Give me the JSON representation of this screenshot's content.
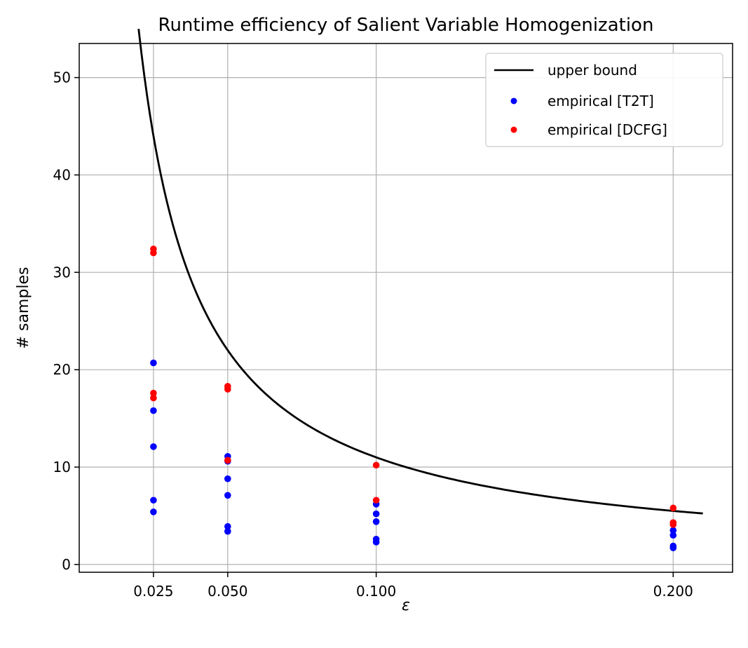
{
  "chart_data": {
    "type": "scatter",
    "title": "Runtime efficiency of Salient Variable Homogenization",
    "xlabel": "ε",
    "ylabel": "# samples",
    "xlim": [
      0.0,
      0.22
    ],
    "ylim": [
      -0.8,
      53.5
    ],
    "x_ticks": [
      0.025,
      0.05,
      0.1,
      0.2
    ],
    "x_tick_labels": [
      "0.025",
      "0.050",
      "0.100",
      "0.200"
    ],
    "y_ticks": [
      0,
      10,
      20,
      30,
      40,
      50
    ],
    "y_tick_labels": [
      "0",
      "10",
      "20",
      "30",
      "40",
      "50"
    ],
    "grid": true,
    "legend_position": "upper right",
    "line": {
      "name": "upper bound",
      "color": "#000000",
      "formula_note": "y ≈ 1.1/x",
      "x_range": [
        0.02,
        0.21
      ]
    },
    "series": [
      {
        "name": "empirical [T2T]",
        "color": "#0000ff",
        "points": [
          [
            0.025,
            20.7
          ],
          [
            0.025,
            15.8
          ],
          [
            0.025,
            12.1
          ],
          [
            0.025,
            6.6
          ],
          [
            0.025,
            5.4
          ],
          [
            0.05,
            11.1
          ],
          [
            0.05,
            10.6
          ],
          [
            0.05,
            8.8
          ],
          [
            0.05,
            7.1
          ],
          [
            0.05,
            3.9
          ],
          [
            0.05,
            3.4
          ],
          [
            0.1,
            6.2
          ],
          [
            0.1,
            5.2
          ],
          [
            0.1,
            4.4
          ],
          [
            0.1,
            2.6
          ],
          [
            0.1,
            2.3
          ],
          [
            0.2,
            3.5
          ],
          [
            0.2,
            3.0
          ],
          [
            0.2,
            1.9
          ],
          [
            0.2,
            1.7
          ]
        ]
      },
      {
        "name": "empirical [DCFG]",
        "color": "#ff0000",
        "points": [
          [
            0.025,
            32.4
          ],
          [
            0.025,
            32.0
          ],
          [
            0.025,
            17.6
          ],
          [
            0.025,
            17.1
          ],
          [
            0.05,
            18.3
          ],
          [
            0.05,
            18.0
          ],
          [
            0.05,
            10.7
          ],
          [
            0.1,
            10.2
          ],
          [
            0.1,
            6.6
          ],
          [
            0.2,
            5.8
          ],
          [
            0.2,
            4.3
          ],
          [
            0.2,
            4.1
          ]
        ]
      }
    ]
  }
}
